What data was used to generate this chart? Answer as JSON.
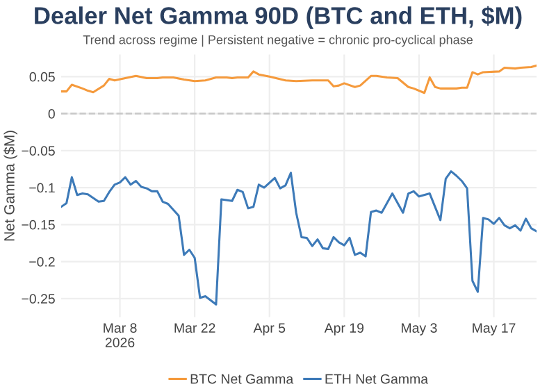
{
  "chart_data": {
    "type": "line",
    "title": "Dealer Net Gamma 90D (BTC and ETH, $M)",
    "subtitle": "Trend across regime | Persistent negative = chronic pro-cyclical phase",
    "ylabel": "Net Gamma ($M)",
    "series": [
      {
        "name": "BTC Net Gamma",
        "color": "#f59a3c",
        "x": [
          "2026-02-25",
          "2026-02-26",
          "2026-02-27",
          "2026-03-01",
          "2026-03-02",
          "2026-03-03",
          "2026-03-05",
          "2026-03-06",
          "2026-03-07",
          "2026-03-09",
          "2026-03-11",
          "2026-03-13",
          "2026-03-15",
          "2026-03-16",
          "2026-03-18",
          "2026-03-20",
          "2026-03-22",
          "2026-03-24",
          "2026-03-26",
          "2026-03-28",
          "2026-03-29",
          "2026-03-30",
          "2026-03-31",
          "2026-04-01",
          "2026-04-02",
          "2026-04-03",
          "2026-04-05",
          "2026-04-08",
          "2026-04-10",
          "2026-04-13",
          "2026-04-16",
          "2026-04-17",
          "2026-04-18",
          "2026-04-19",
          "2026-04-21",
          "2026-04-22",
          "2026-04-24",
          "2026-04-25",
          "2026-04-27",
          "2026-04-29",
          "2026-05-01",
          "2026-05-02",
          "2026-05-04",
          "2026-05-05",
          "2026-05-06",
          "2026-05-07",
          "2026-05-10",
          "2026-05-11",
          "2026-05-12",
          "2026-05-13",
          "2026-05-14",
          "2026-05-15",
          "2026-05-18",
          "2026-05-19",
          "2026-05-21",
          "2026-05-22",
          "2026-05-24",
          "2026-05-25"
        ],
        "values": [
          0.03,
          0.03,
          0.039,
          0.034,
          0.031,
          0.029,
          0.038,
          0.047,
          0.045,
          0.048,
          0.051,
          0.048,
          0.048,
          0.049,
          0.049,
          0.046,
          0.044,
          0.045,
          0.049,
          0.049,
          0.048,
          0.049,
          0.049,
          0.049,
          0.057,
          0.053,
          0.05,
          0.045,
          0.044,
          0.045,
          0.045,
          0.037,
          0.038,
          0.041,
          0.036,
          0.038,
          0.051,
          0.051,
          0.049,
          0.048,
          0.036,
          0.034,
          0.028,
          0.049,
          0.036,
          0.034,
          0.034,
          0.035,
          0.035,
          0.056,
          0.053,
          0.056,
          0.057,
          0.062,
          0.061,
          0.062,
          0.063,
          0.065
        ]
      },
      {
        "name": "ETH Net Gamma",
        "color": "#3d7ab8",
        "x": [
          "2026-02-25",
          "2026-02-26",
          "2026-02-27",
          "2026-02-28",
          "2026-03-01",
          "2026-03-02",
          "2026-03-04",
          "2026-03-05",
          "2026-03-06",
          "2026-03-07",
          "2026-03-08",
          "2026-03-09",
          "2026-03-10",
          "2026-03-11",
          "2026-03-12",
          "2026-03-13",
          "2026-03-14",
          "2026-03-15",
          "2026-03-16",
          "2026-03-17",
          "2026-03-19",
          "2026-03-20",
          "2026-03-21",
          "2026-03-22",
          "2026-03-23",
          "2026-03-24",
          "2026-03-26",
          "2026-03-27",
          "2026-03-29",
          "2026-03-30",
          "2026-03-31",
          "2026-04-01",
          "2026-04-02",
          "2026-04-03",
          "2026-04-04",
          "2026-04-06",
          "2026-04-07",
          "2026-04-08",
          "2026-04-09",
          "2026-04-10",
          "2026-04-11",
          "2026-04-12",
          "2026-04-13",
          "2026-04-14",
          "2026-04-15",
          "2026-04-16",
          "2026-04-17",
          "2026-04-18",
          "2026-04-19",
          "2026-04-20",
          "2026-04-21",
          "2026-04-22",
          "2026-04-23",
          "2026-04-24",
          "2026-04-25",
          "2026-04-26",
          "2026-04-28",
          "2026-04-30",
          "2026-05-01",
          "2026-05-02",
          "2026-05-03",
          "2026-05-05",
          "2026-05-07",
          "2026-05-08",
          "2026-05-09",
          "2026-05-10",
          "2026-05-11",
          "2026-05-12",
          "2026-05-13",
          "2026-05-14",
          "2026-05-15",
          "2026-05-16",
          "2026-05-17",
          "2026-05-18",
          "2026-05-19",
          "2026-05-20",
          "2026-05-21",
          "2026-05-22",
          "2026-05-23",
          "2026-05-24",
          "2026-05-25"
        ],
        "values": [
          -0.126,
          -0.121,
          -0.086,
          -0.11,
          -0.108,
          -0.109,
          -0.119,
          -0.118,
          -0.106,
          -0.096,
          -0.093,
          -0.086,
          -0.096,
          -0.091,
          -0.099,
          -0.101,
          -0.105,
          -0.105,
          -0.119,
          -0.122,
          -0.138,
          -0.191,
          -0.184,
          -0.195,
          -0.249,
          -0.247,
          -0.258,
          -0.116,
          -0.118,
          -0.103,
          -0.106,
          -0.128,
          -0.126,
          -0.096,
          -0.1,
          -0.087,
          -0.101,
          -0.097,
          -0.08,
          -0.134,
          -0.167,
          -0.168,
          -0.179,
          -0.17,
          -0.182,
          -0.183,
          -0.167,
          -0.174,
          -0.178,
          -0.168,
          -0.191,
          -0.188,
          -0.193,
          -0.133,
          -0.131,
          -0.134,
          -0.108,
          -0.134,
          -0.108,
          -0.105,
          -0.112,
          -0.108,
          -0.144,
          -0.088,
          -0.078,
          -0.084,
          -0.091,
          -0.101,
          -0.226,
          -0.241,
          -0.141,
          -0.143,
          -0.149,
          -0.141,
          -0.151,
          -0.155,
          -0.151,
          -0.158,
          -0.142,
          -0.155,
          -0.159
        ]
      }
    ],
    "xlim": [
      "2026-02-25",
      "2026-05-25"
    ],
    "xticks": [
      {
        "value": "2026-03-08",
        "label": "Mar 8\n2026"
      },
      {
        "value": "2026-03-22",
        "label": "Mar 22"
      },
      {
        "value": "2026-04-05",
        "label": "Apr 5"
      },
      {
        "value": "2026-04-19",
        "label": "Apr 19"
      },
      {
        "value": "2026-05-03",
        "label": "May 3"
      },
      {
        "value": "2026-05-17",
        "label": "May 17"
      }
    ],
    "ylim": [
      -0.275,
      0.08
    ],
    "yticks": [
      {
        "value": -0.25,
        "label": "−0.25"
      },
      {
        "value": -0.2,
        "label": "−0.2"
      },
      {
        "value": -0.15,
        "label": "−0.15"
      },
      {
        "value": -0.1,
        "label": "−0.1"
      },
      {
        "value": -0.05,
        "label": "−0.05"
      },
      0,
      0.05
    ],
    "ref_lines": [
      {
        "axis": "y",
        "value": 0,
        "color": "#c8c8c8",
        "line_style": "dashed"
      }
    ],
    "grid": true,
    "legend": "bottom",
    "line_style": "solid",
    "marker": "none"
  }
}
